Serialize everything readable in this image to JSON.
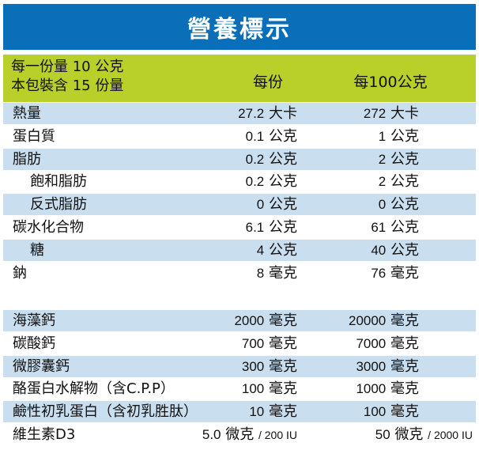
{
  "title": "營養標示",
  "header": {
    "serving_line1": "每一份量 10 公克",
    "serving_line2": "本包裝含 15 份量",
    "col_per_serving": "每份",
    "col_per_100": "每100公克"
  },
  "nutrients": [
    {
      "name": "熱量",
      "indent": false,
      "v1": "27.2",
      "u1": "大卡",
      "v2": "272",
      "u2": "大卡"
    },
    {
      "name": "蛋白質",
      "indent": false,
      "v1": "0.1",
      "u1": "公克",
      "v2": "1",
      "u2": "公克"
    },
    {
      "name": "脂肪",
      "indent": false,
      "v1": "0.2",
      "u1": "公克",
      "v2": "2",
      "u2": "公克"
    },
    {
      "name": "飽和脂肪",
      "indent": true,
      "v1": "0.2",
      "u1": "公克",
      "v2": "2",
      "u2": "公克"
    },
    {
      "name": "反式脂肪",
      "indent": true,
      "v1": "0",
      "u1": "公克",
      "v2": "0",
      "u2": "公克"
    },
    {
      "name": "碳水化合物",
      "indent": false,
      "v1": "6.1",
      "u1": "公克",
      "v2": "61",
      "u2": "公克"
    },
    {
      "name": "糖",
      "indent": true,
      "v1": "4",
      "u1": "公克",
      "v2": "40",
      "u2": "公克"
    },
    {
      "name": "鈉",
      "indent": false,
      "v1": "8",
      "u1": "毫克",
      "v2": "76",
      "u2": "毫克"
    }
  ],
  "ingredients": [
    {
      "name": "海藻鈣",
      "v1": "2000",
      "u1": "毫克",
      "v2": "20000",
      "u2": "毫克"
    },
    {
      "name": "碳酸鈣",
      "v1": "700",
      "u1": "毫克",
      "v2": "7000",
      "u2": "毫克"
    },
    {
      "name": "微膠囊鈣",
      "v1": "300",
      "u1": "毫克",
      "v2": "3000",
      "u2": "毫克"
    },
    {
      "name": "酪蛋白水解物（含C.P.P）",
      "v1": "100",
      "u1": "毫克",
      "v2": "1000",
      "u2": "毫克"
    },
    {
      "name": "鹼性初乳蛋白（含初乳胜肽）",
      "v1": "10",
      "u1": "毫克",
      "v2": "100",
      "u2": "毫克"
    },
    {
      "name": "維生素D3",
      "v1": "5.0",
      "u1": "微克",
      "iu1": "/ 200 IU",
      "v2": "50",
      "u2": "微克",
      "iu2": "/ 2000 IU"
    }
  ],
  "colors": {
    "title_bg": "#0a6fb8",
    "header_bg": "#b9cf2a",
    "row_shade": "#c9dff0"
  }
}
